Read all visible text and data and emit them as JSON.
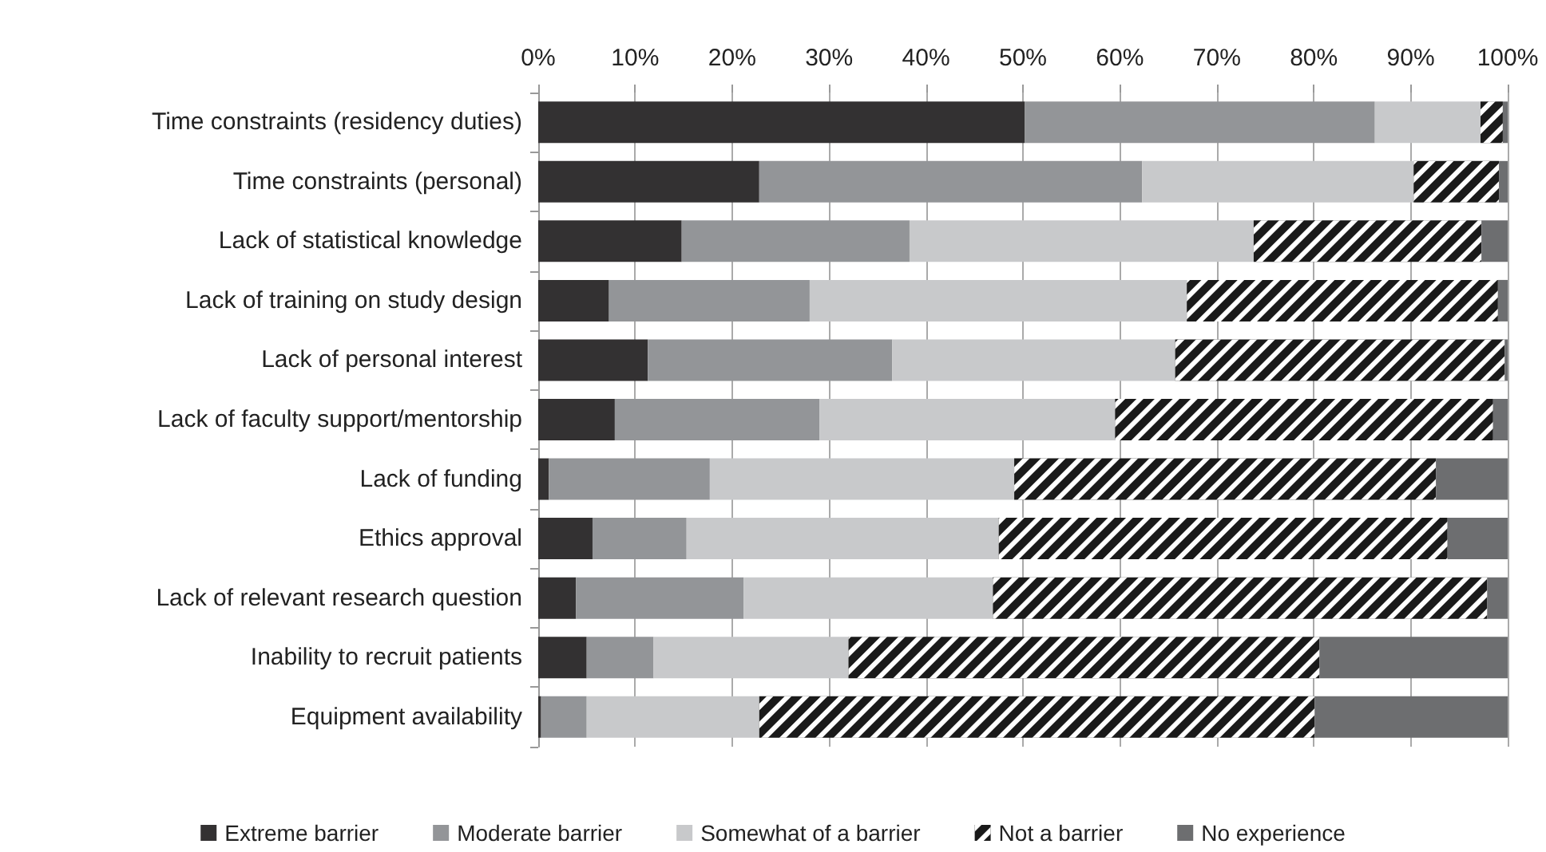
{
  "chart_data": {
    "type": "bar",
    "orientation": "horizontal",
    "stacked": true,
    "categories": [
      "Time constraints (residency duties)",
      "Time constraints (personal)",
      "Lack of statistical knowledge",
      "Lack of training on study design",
      "Lack of personal interest",
      "Lack of faculty support/mentorship",
      "Lack of funding",
      "Ethics approval",
      "Lack of relevant research question",
      "Inability to recruit patients",
      "Equipment availability"
    ],
    "series": [
      {
        "name": "Extreme barrier",
        "color": "#333132",
        "values": [
          50.2,
          22.8,
          14.8,
          7.3,
          11.3,
          7.9,
          1.1,
          5.6,
          3.9,
          5.0,
          0.3
        ]
      },
      {
        "name": "Moderate barrier",
        "color": "#939598",
        "values": [
          36.1,
          39.5,
          23.5,
          20.7,
          25.2,
          21.1,
          16.6,
          9.7,
          17.3,
          6.9,
          4.7
        ]
      },
      {
        "name": "Somewhat of a barrier",
        "color": "#c8c9cb",
        "values": [
          10.9,
          28.0,
          35.5,
          38.9,
          29.2,
          30.5,
          31.4,
          32.2,
          25.7,
          20.1,
          17.8
        ]
      },
      {
        "name": "Not a barrier",
        "color": "#1a1a1a",
        "values": [
          2.3,
          8.8,
          23.5,
          32.1,
          34.0,
          39.0,
          43.5,
          46.3,
          51.0,
          48.6,
          57.3
        ]
      },
      {
        "name": "No experience",
        "color": "#6d6e70",
        "values": [
          0.5,
          0.9,
          2.7,
          1.0,
          0.3,
          1.5,
          7.4,
          6.2,
          2.1,
          19.4,
          19.9
        ]
      }
    ],
    "xlim": [
      0,
      100
    ],
    "xticks": [
      {
        "value": 0,
        "label": "0%"
      },
      {
        "value": 10,
        "label": "10%"
      },
      {
        "value": 20,
        "label": "20%"
      },
      {
        "value": 30,
        "label": "30%"
      },
      {
        "value": 40,
        "label": "40%"
      },
      {
        "value": 50,
        "label": "50%"
      },
      {
        "value": 60,
        "label": "60%"
      },
      {
        "value": 70,
        "label": "70%"
      },
      {
        "value": 80,
        "label": "80%"
      },
      {
        "value": 90,
        "label": "90%"
      },
      {
        "value": 100,
        "label": "100%"
      }
    ],
    "grid": "x",
    "legend": "bottom"
  }
}
